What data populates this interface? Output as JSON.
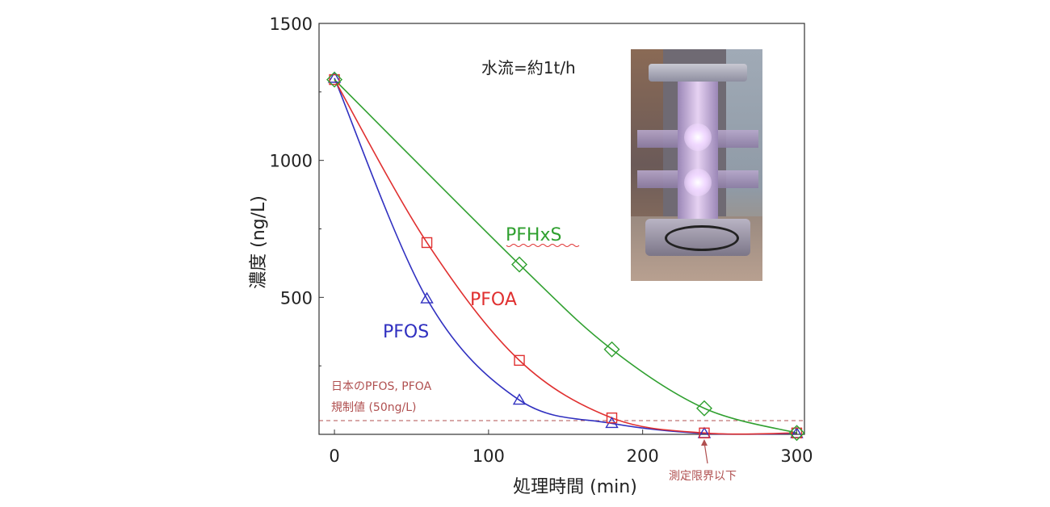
{
  "chart_data": {
    "type": "line",
    "title": "",
    "xlabel": "処理時間 (min)",
    "ylabel": "濃度 (ng/L)",
    "xlim": [
      -10,
      305
    ],
    "ylim": [
      0,
      1500
    ],
    "xticks": [
      0,
      100,
      200,
      300
    ],
    "yticks": [
      500,
      1000,
      1500
    ],
    "grid": false,
    "legend": "none",
    "x": [
      0,
      60,
      120,
      180,
      240,
      300
    ],
    "series": [
      {
        "name": "PFOS",
        "color": "#3030c0",
        "marker": "triangle",
        "values": [
          1300,
          495,
          125,
          40,
          3,
          3
        ]
      },
      {
        "name": "PFOA",
        "color": "#e03030",
        "marker": "square",
        "values": [
          1295,
          700,
          270,
          60,
          5,
          5
        ]
      },
      {
        "name": "PFHxS",
        "color": "#30a030",
        "marker": "diamond",
        "values": [
          1295,
          null,
          620,
          310,
          95,
          5
        ]
      }
    ],
    "reference_line": {
      "value": 50,
      "color": "#b05050",
      "label_line1": "日本のPFOS, PFOA",
      "label_line2": "規制値 (50ng/L)"
    },
    "annotations": {
      "flow": "水流=約1t/h",
      "detection_limit": "測定限界以下",
      "detection_limit_x": 240
    }
  }
}
